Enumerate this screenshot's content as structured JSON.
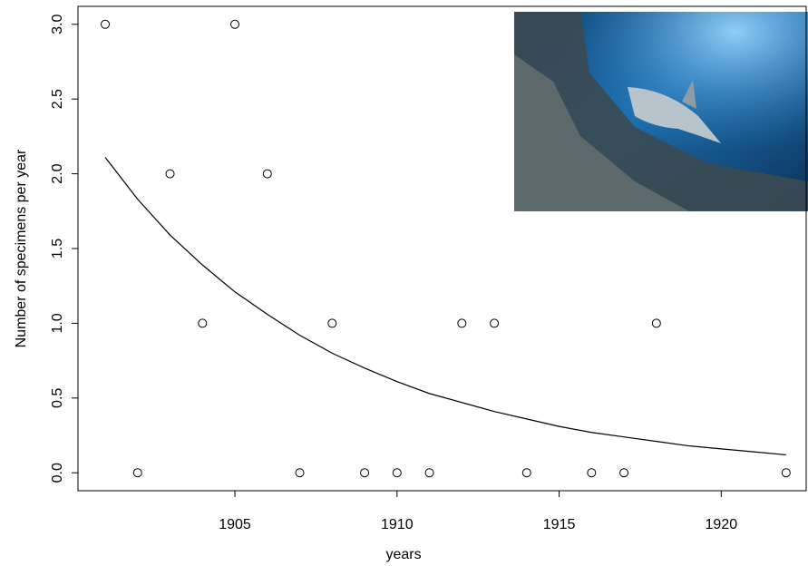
{
  "chart_data": {
    "type": "scatter",
    "x_label": "years",
    "y_label": "Number of specimens per year",
    "xlim": [
      1900.16,
      1922.62
    ],
    "ylim": [
      -0.12,
      3.12
    ],
    "xticks": [
      1905,
      1910,
      1915,
      1920
    ],
    "yticks": [
      {
        "value": 0,
        "label": "0.0"
      },
      {
        "value": 0.5,
        "label": "0.5"
      },
      {
        "value": 1,
        "label": "1.0"
      },
      {
        "value": 1.5,
        "label": "1.5"
      },
      {
        "value": 2,
        "label": "2.0"
      },
      {
        "value": 2.5,
        "label": "2.5"
      },
      {
        "value": 3,
        "label": "3.0"
      }
    ],
    "series": [
      {
        "type": "scatter",
        "color": "#000000",
        "x": [
          1901,
          1902,
          1903,
          1904,
          1905,
          1906,
          1907,
          1908,
          1909,
          1910,
          1911,
          1912,
          1913,
          1914,
          1916,
          1917,
          1918,
          1922
        ],
        "values": [
          3,
          0,
          2,
          1,
          3,
          2,
          0,
          1,
          0,
          0,
          0,
          1,
          1,
          0,
          0,
          0,
          1,
          0
        ]
      },
      {
        "type": "line",
        "color": "#000000",
        "x": [
          1901,
          1902,
          1903,
          1904,
          1905,
          1906,
          1907,
          1908,
          1909,
          1910,
          1911,
          1912,
          1913,
          1914,
          1915,
          1916,
          1917,
          1918,
          1919,
          1920,
          1921,
          1922
        ],
        "values": [
          2.11,
          1.83,
          1.59,
          1.39,
          1.21,
          1.06,
          0.92,
          0.8,
          0.7,
          0.61,
          0.53,
          0.47,
          0.41,
          0.36,
          0.31,
          0.27,
          0.24,
          0.21,
          0.18,
          0.16,
          0.14,
          0.12
        ]
      }
    ]
  }
}
